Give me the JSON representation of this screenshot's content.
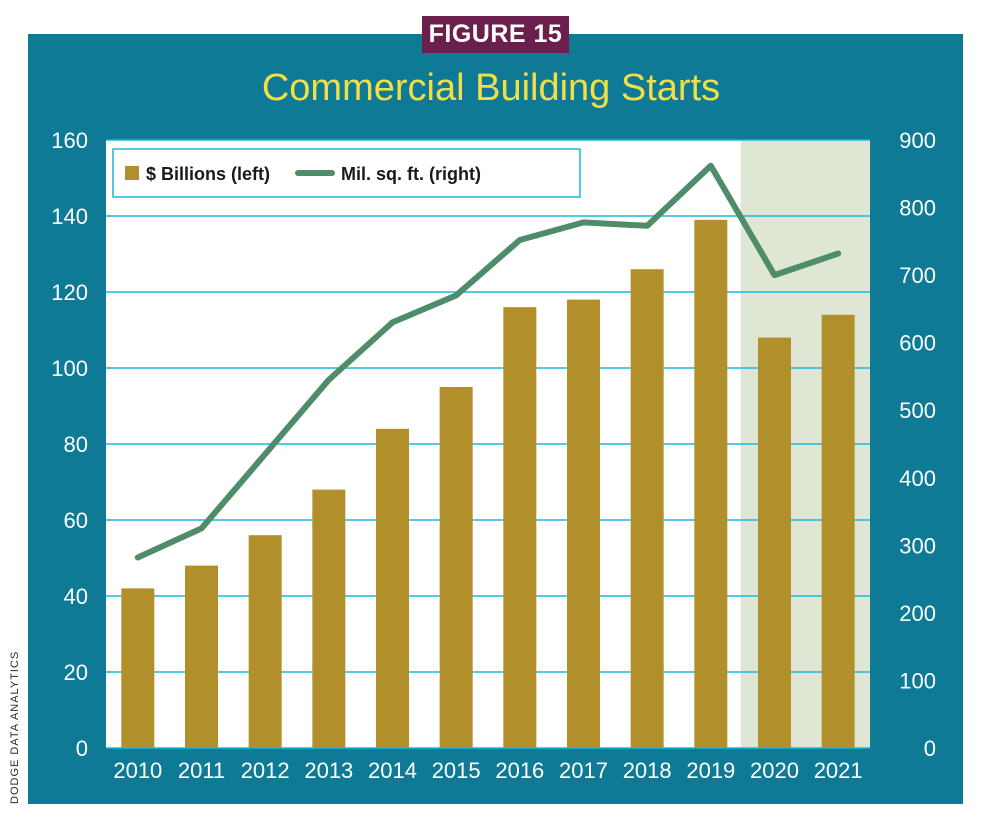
{
  "figure_label": "FIGURE 15",
  "source_note": "DODGE DATA ANALYTICS",
  "colors": {
    "frame": "#0e7a96",
    "badge": "#6b1f4d",
    "title": "#f2df46",
    "bar": "#b1902c",
    "line": "#4f8c69",
    "forecast_shade": "#dfe6d3",
    "gridline": "#19b9d8"
  },
  "chart_data": {
    "type": "bar",
    "title": "Commercial Building Starts",
    "categories": [
      "2010",
      "2011",
      "2012",
      "2013",
      "2014",
      "2015",
      "2016",
      "2017",
      "2018",
      "2019",
      "2020",
      "2021"
    ],
    "series": [
      {
        "name": "$ Billions (left)",
        "type": "bar",
        "axis": "left",
        "values": [
          42,
          48,
          56,
          68,
          84,
          95,
          116,
          118,
          126,
          139,
          108,
          114
        ]
      },
      {
        "name": "Mil. sq. ft. (right)",
        "type": "line",
        "axis": "right",
        "values": [
          282,
          325,
          435,
          545,
          630,
          670,
          752,
          778,
          773,
          862,
          700,
          732
        ]
      }
    ],
    "y_left": {
      "min": 0,
      "max": 160,
      "ticks": [
        "0",
        "20",
        "40",
        "60",
        "80",
        "100",
        "120",
        "140",
        "160"
      ]
    },
    "y_right": {
      "min": 0,
      "max": 900,
      "ticks": [
        "0",
        "100",
        "200",
        "300",
        "400",
        "500",
        "600",
        "700",
        "800",
        "900"
      ]
    },
    "shaded_categories": [
      "2020",
      "2021"
    ],
    "grid": true,
    "legend_position": "top-left"
  }
}
